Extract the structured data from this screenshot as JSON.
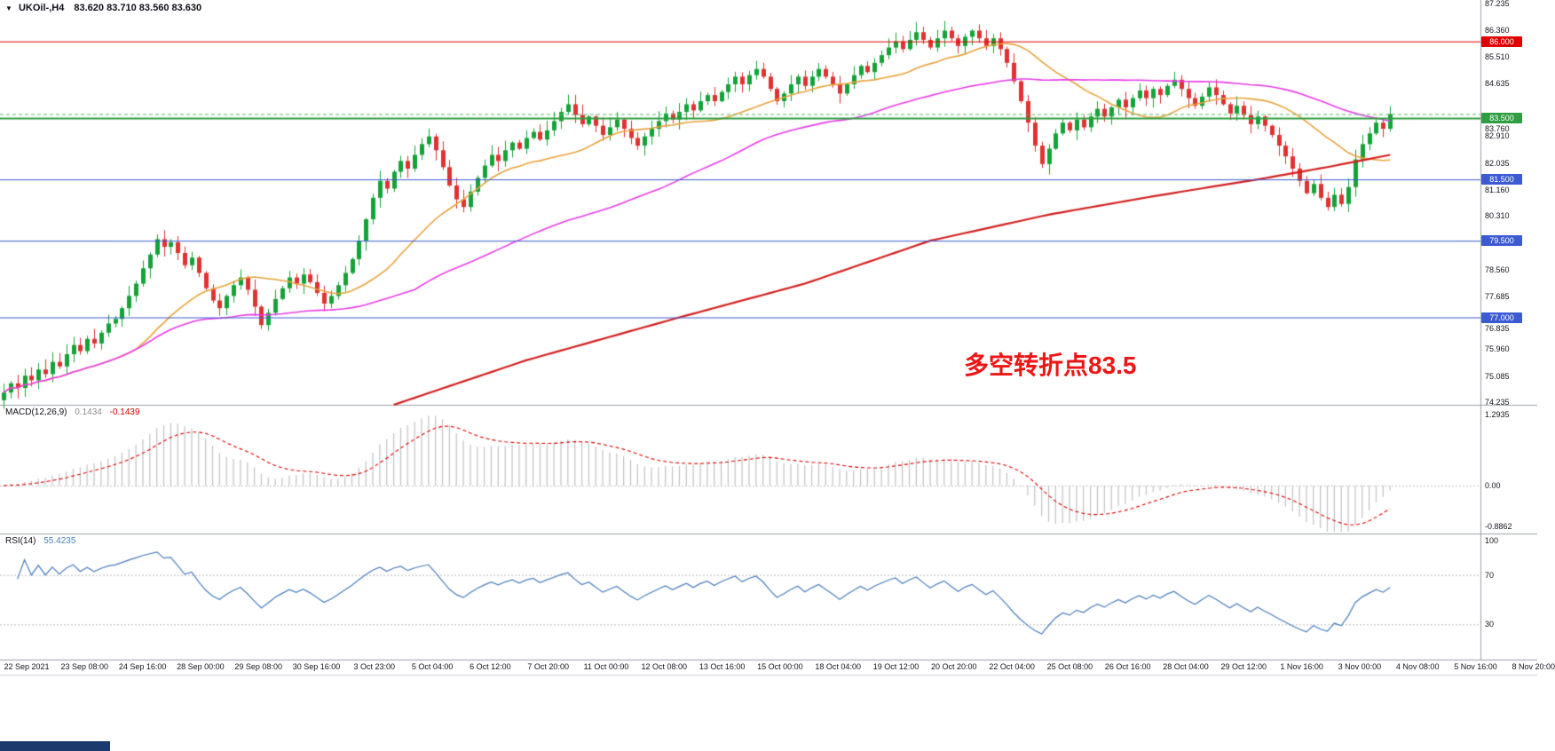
{
  "window": {
    "bg": "#ffffff",
    "colors": {
      "up": "#15a339",
      "down": "#e03232",
      "separator": "#9aa0a6",
      "taskbar": "#1c3a6b"
    }
  },
  "header": {
    "dropdown_icon": "▼",
    "title": "UKOil-,H4",
    "ohlc": "83.620 83.710 83.560 83.630"
  },
  "annotation": {
    "text": "多空转折点83.5",
    "color": "#ee1515"
  },
  "price_scale": {
    "labels": [
      87.235,
      86.36,
      85.51,
      84.635,
      83.76,
      82.91,
      82.035,
      81.16,
      80.31,
      78.56,
      77.685,
      76.835,
      75.96,
      75.085,
      74.235
    ]
  },
  "hlines": [
    {
      "price": 86.0,
      "label": "86.000",
      "color": "#e00000",
      "width": 1
    },
    {
      "price": 83.5,
      "label": "83.500",
      "color": "#2f9e41",
      "width": 2
    },
    {
      "price": 81.5,
      "label": "81.500",
      "color": "#3c5bd2",
      "width": 1
    },
    {
      "price": 79.5,
      "label": "79.500",
      "color": "#3c5bd2",
      "width": 1
    },
    {
      "price": 77.0,
      "label": "77.000",
      "color": "#3c5bd2",
      "width": 1
    }
  ],
  "current_price_line": {
    "price": 83.63,
    "color": "#52bd63"
  },
  "time_axis": {
    "labels": [
      "22 Sep 2021",
      "23 Sep 08:00",
      "24 Sep 16:00",
      "28 Sep 00:00",
      "29 Sep 08:00",
      "30 Sep 16:00",
      "3 Oct 23:00",
      "5 Oct 04:00",
      "6 Oct 12:00",
      "7 Oct 20:00",
      "11 Oct 00:00",
      "12 Oct 08:00",
      "13 Oct 16:00",
      "15 Oct 00:00",
      "18 Oct 04:00",
      "19 Oct 12:00",
      "20 Oct 20:00",
      "22 Oct 04:00",
      "25 Oct 08:00",
      "26 Oct 16:00",
      "28 Oct 04:00",
      "29 Oct 12:00",
      "1 Nov 16:00",
      "3 Nov 00:00",
      "4 Nov 08:00",
      "5 Nov 16:00",
      "8 Nov 20:00"
    ]
  },
  "macd": {
    "label": "MACD(12,26,9)",
    "value_main": "0.1434",
    "value_signal": "-0.1439",
    "main_value_color": "#8c8c8c",
    "signal_color": "#e00000",
    "histogram_color": "#c2c2c2",
    "scale_labels": [
      "1.2935",
      "0.00",
      "-0.8862"
    ],
    "fast": 12,
    "slow": 26,
    "signal": 9
  },
  "rsi": {
    "label": "RSI(14)",
    "value": "55.4235",
    "color": "#4a7ebb",
    "period": 14,
    "levels": [
      70,
      30
    ],
    "scale_labels": [
      100,
      70,
      30
    ]
  },
  "chart_data": {
    "type": "candlestick",
    "title": "UKOil- H4",
    "symbol": "UKOil-",
    "timeframe": "H4",
    "ohlc_current": {
      "open": 83.62,
      "high": 83.71,
      "low": 83.56,
      "close": 83.63
    },
    "price_axis": {
      "top": 87.35,
      "bottom": 74.15
    },
    "x_range": [
      "22 Sep 2021 00:00",
      "8 Nov 2021 20:00"
    ],
    "grid": "off",
    "first_open": 74.3,
    "closes": [
      74.55,
      74.85,
      74.7,
      75.1,
      74.95,
      75.3,
      75.15,
      75.55,
      75.4,
      75.8,
      76.1,
      75.9,
      76.3,
      76.15,
      76.5,
      76.8,
      76.95,
      77.3,
      77.7,
      78.1,
      78.6,
      79.05,
      79.55,
      79.3,
      79.45,
      79.1,
      78.7,
      78.95,
      78.45,
      77.95,
      77.55,
      77.3,
      77.7,
      78.05,
      78.3,
      77.9,
      77.35,
      76.75,
      77.15,
      77.6,
      77.95,
      78.3,
      78.1,
      78.4,
      78.15,
      77.8,
      77.45,
      77.7,
      78.05,
      78.45,
      78.9,
      79.5,
      80.2,
      80.9,
      81.45,
      81.2,
      81.75,
      82.1,
      81.85,
      82.3,
      82.65,
      82.9,
      82.45,
      81.9,
      81.3,
      80.85,
      80.6,
      81.1,
      81.55,
      81.95,
      82.3,
      82.1,
      82.45,
      82.7,
      82.5,
      82.85,
      83.05,
      82.8,
      83.1,
      83.4,
      83.7,
      83.95,
      83.6,
      83.3,
      83.55,
      83.25,
      82.95,
      83.2,
      83.45,
      83.15,
      82.85,
      82.6,
      82.9,
      83.15,
      83.4,
      83.65,
      83.45,
      83.7,
      83.95,
      83.75,
      84.05,
      84.25,
      84.05,
      84.35,
      84.6,
      84.85,
      84.6,
      84.9,
      85.1,
      84.85,
      84.45,
      84.05,
      84.3,
      84.6,
      84.85,
      84.55,
      84.85,
      85.1,
      84.85,
      84.6,
      84.3,
      84.6,
      84.9,
      85.2,
      85.0,
      85.3,
      85.55,
      85.8,
      86.0,
      85.75,
      86.05,
      86.3,
      86.05,
      85.8,
      86.1,
      86.35,
      86.1,
      85.85,
      86.15,
      86.35,
      86.1,
      85.85,
      86.1,
      85.75,
      85.3,
      84.7,
      84.05,
      83.35,
      82.6,
      82.0,
      82.5,
      83.0,
      83.35,
      83.1,
      83.45,
      83.2,
      83.55,
      83.8,
      83.55,
      83.85,
      84.1,
      83.85,
      84.15,
      84.4,
      84.15,
      84.45,
      84.25,
      84.55,
      84.75,
      84.45,
      84.15,
      83.9,
      84.2,
      84.5,
      84.25,
      83.95,
      83.65,
      83.9,
      83.6,
      83.3,
      83.55,
      83.25,
      82.95,
      82.6,
      82.25,
      81.85,
      81.45,
      81.05,
      81.35,
      80.9,
      80.6,
      81.0,
      80.7,
      81.25,
      82.15,
      82.65,
      83.0,
      83.35,
      83.15,
      83.63
    ],
    "overlays": [
      {
        "name": "ma-fast",
        "type": "sma",
        "period": 20,
        "color": "#e8a33d"
      },
      {
        "name": "ma-mid",
        "type": "sma",
        "period": 60,
        "color": "#e93ce9"
      },
      {
        "name": "ma-slow",
        "type": "points",
        "color": "#d42020",
        "points": [
          [
            56,
            74.15
          ],
          [
            75,
            75.6
          ],
          [
            97,
            77.0
          ],
          [
            115,
            78.1
          ],
          [
            133,
            79.5
          ],
          [
            150,
            80.35
          ],
          [
            165,
            80.95
          ],
          [
            180,
            81.5
          ],
          [
            190,
            81.9
          ],
          [
            199,
            82.3
          ]
        ]
      }
    ]
  }
}
